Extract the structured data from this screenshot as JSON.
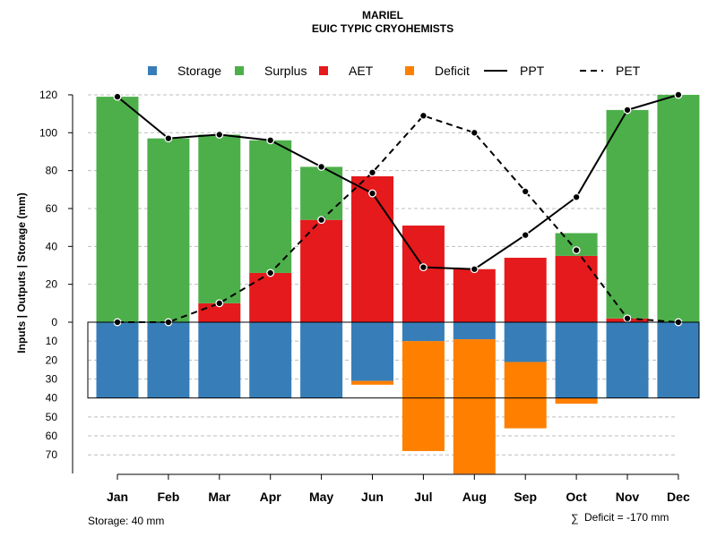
{
  "chart_data": {
    "type": "bar",
    "title": "MARIEL",
    "subtitle": "EUIC TYPIC CRYOHEMISTS",
    "ylabel": "Inputs | Outputs | Storage    (mm)",
    "categories": [
      "Jan",
      "Feb",
      "Mar",
      "Apr",
      "May",
      "Jun",
      "Jul",
      "Aug",
      "Sep",
      "Oct",
      "Nov",
      "Dec"
    ],
    "ylim_upper": [
      0,
      120
    ],
    "ylim_lower": [
      0,
      80
    ],
    "yticks_upper": [
      "0",
      "20",
      "40",
      "60",
      "80",
      "100",
      "120"
    ],
    "yticks_lower": [
      "10",
      "20",
      "30",
      "40",
      "50",
      "60",
      "70"
    ],
    "legend": [
      {
        "key": "storage",
        "label": "Storage",
        "kind": "box"
      },
      {
        "key": "surplus",
        "label": "Surplus",
        "kind": "box"
      },
      {
        "key": "aet",
        "label": "AET",
        "kind": "box"
      },
      {
        "key": "deficit",
        "label": "Deficit",
        "kind": "box"
      },
      {
        "key": "ppt",
        "label": "PPT",
        "kind": "solid"
      },
      {
        "key": "pet",
        "label": "PET",
        "kind": "dashed"
      }
    ],
    "colors": {
      "storage": "#377eb8",
      "surplus": "#4daf4a",
      "aet": "#e41a1c",
      "deficit": "#ff7f00",
      "line": "#000000",
      "grid": "#bebebe"
    },
    "series": [
      {
        "name": "AET",
        "values": [
          0,
          0,
          10,
          26,
          54,
          77,
          51,
          28,
          34,
          35,
          2,
          0
        ]
      },
      {
        "name": "Surplus",
        "values": [
          119,
          97,
          89,
          70,
          28,
          0,
          0,
          0,
          0,
          12,
          110,
          120
        ]
      },
      {
        "name": "Storage",
        "values": [
          40,
          40,
          40,
          40,
          40,
          31,
          10,
          9,
          21,
          40,
          40,
          40
        ]
      },
      {
        "name": "Deficit",
        "values": [
          0,
          0,
          0,
          0,
          0,
          2,
          58,
          71,
          35,
          3,
          0,
          0
        ]
      },
      {
        "name": "PPT",
        "values": [
          119,
          97,
          99,
          96,
          82,
          68,
          29,
          28,
          46,
          66,
          112,
          120
        ]
      },
      {
        "name": "PET",
        "values": [
          0,
          0,
          10,
          26,
          54,
          79,
          109,
          100,
          69,
          38,
          2,
          0
        ]
      }
    ],
    "storage_capacity": 40,
    "storage_note": "Storage: 40 mm",
    "deficit_symbol": "∑",
    "deficit_note": "Deficit = -170 mm"
  }
}
